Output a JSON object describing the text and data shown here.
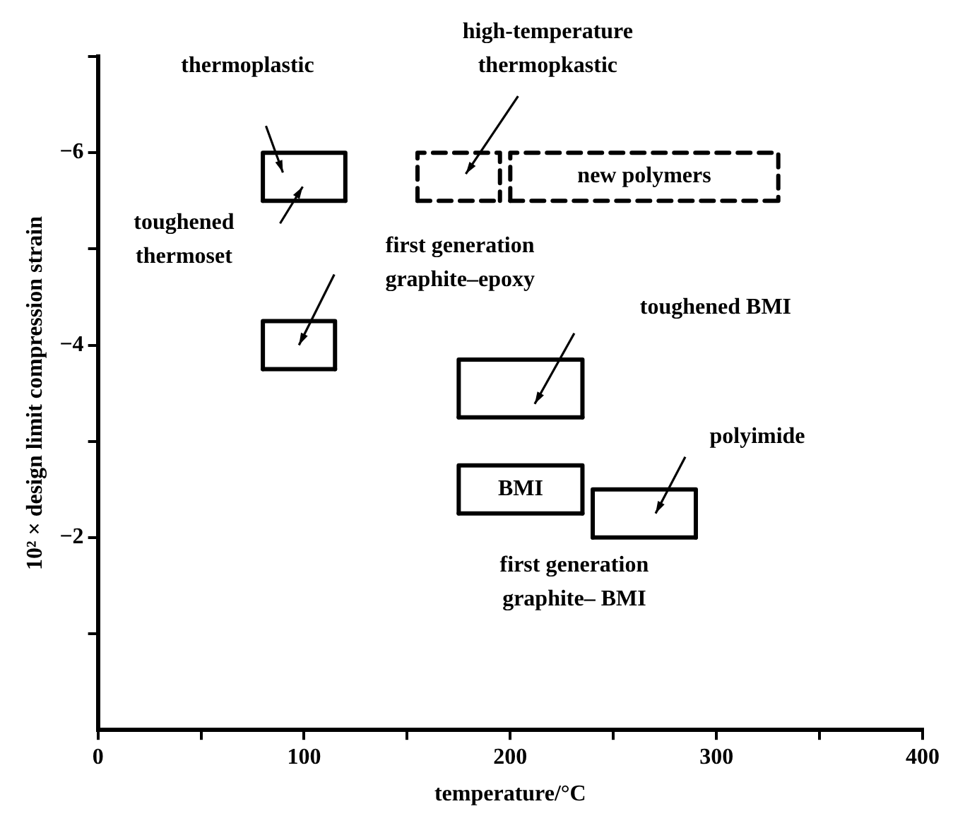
{
  "chart_data": {
    "type": "line",
    "xlabel": "temperature/°C",
    "ylabel": "10² × design limit compression strain",
    "xlim": [
      0,
      400
    ],
    "xticks": [
      0,
      {
        "value": 50,
        "label": null
      },
      100,
      {
        "value": 150,
        "label": null
      },
      200,
      {
        "value": 250,
        "label": null
      },
      300,
      {
        "value": 350,
        "label": null
      },
      400
    ],
    "ylim": [
      0,
      -7
    ],
    "yticks": [
      {
        "value": -1,
        "label": null
      },
      -2,
      {
        "value": -3,
        "label": null
      },
      -4,
      {
        "value": -5,
        "label": null
      },
      -6,
      {
        "value": -7,
        "label": null
      }
    ],
    "grid": false,
    "legend": false,
    "marker": "none",
    "series": [
      {
        "color": "#000000",
        "line_style": "solid",
        "x": [
          80,
          80,
          120,
          120
        ],
        "values": [
          -5.5,
          -6,
          -6,
          -5.5
        ]
      },
      {
        "color": "#000000",
        "line_style": "solid",
        "x": [
          80,
          120
        ],
        "values": [
          -5.5,
          -5.5
        ]
      },
      {
        "color": "#000000",
        "line_style": "solid",
        "x": [
          80,
          80,
          115,
          115
        ],
        "values": [
          -3.75,
          -4.25,
          -4.25,
          -3.75
        ]
      },
      {
        "color": "#000000",
        "line_style": "solid",
        "x": [
          80,
          115
        ],
        "values": [
          -3.75,
          -3.75
        ]
      },
      {
        "color": "#000000",
        "line_style": "solid",
        "x": [
          175,
          175,
          235,
          235
        ],
        "values": [
          -3.25,
          -3.85,
          -3.85,
          -3.25
        ]
      },
      {
        "color": "#000000",
        "line_style": "solid",
        "x": [
          175,
          235
        ],
        "values": [
          -3.25,
          -3.25
        ]
      },
      {
        "color": "#000000",
        "line_style": "solid",
        "x": [
          175,
          175,
          235,
          235
        ],
        "values": [
          -2.25,
          -2.75,
          -2.75,
          -2.25
        ]
      },
      {
        "color": "#000000",
        "line_style": "solid",
        "x": [
          175,
          235
        ],
        "values": [
          -2.25,
          -2.25
        ]
      },
      {
        "color": "#000000",
        "line_style": "solid",
        "x": [
          240,
          240,
          290,
          290
        ],
        "values": [
          -2,
          -2.5,
          -2.5,
          -2
        ]
      },
      {
        "color": "#000000",
        "line_style": "solid",
        "x": [
          240,
          290
        ],
        "values": [
          -2,
          -2
        ]
      },
      {
        "color": "#000000",
        "line_style": "dashed",
        "x": [
          155,
          155,
          195,
          195
        ],
        "values": [
          -5.5,
          -6,
          -6,
          -5.5
        ]
      },
      {
        "color": "#000000",
        "line_style": "dashed",
        "x": [
          155,
          195
        ],
        "values": [
          -5.5,
          -5.5
        ]
      },
      {
        "color": "#000000",
        "line_style": "dashed",
        "x": [
          200,
          200,
          330,
          330
        ],
        "values": [
          -5.5,
          -6,
          -6,
          -5.5
        ]
      },
      {
        "color": "#000000",
        "line_style": "dashed",
        "x": [
          200,
          330
        ],
        "values": [
          -5.5,
          -5.5
        ]
      }
    ],
    "annotations": [
      "thermoplastic",
      "toughened\nthermoset",
      "first generation\ngraphite–epoxy",
      "high-temperature\nthermopkastic",
      "toughened BMI",
      "polyimide",
      "new polymers",
      "BMI",
      "first generation\ngraphite– BMI"
    ]
  }
}
